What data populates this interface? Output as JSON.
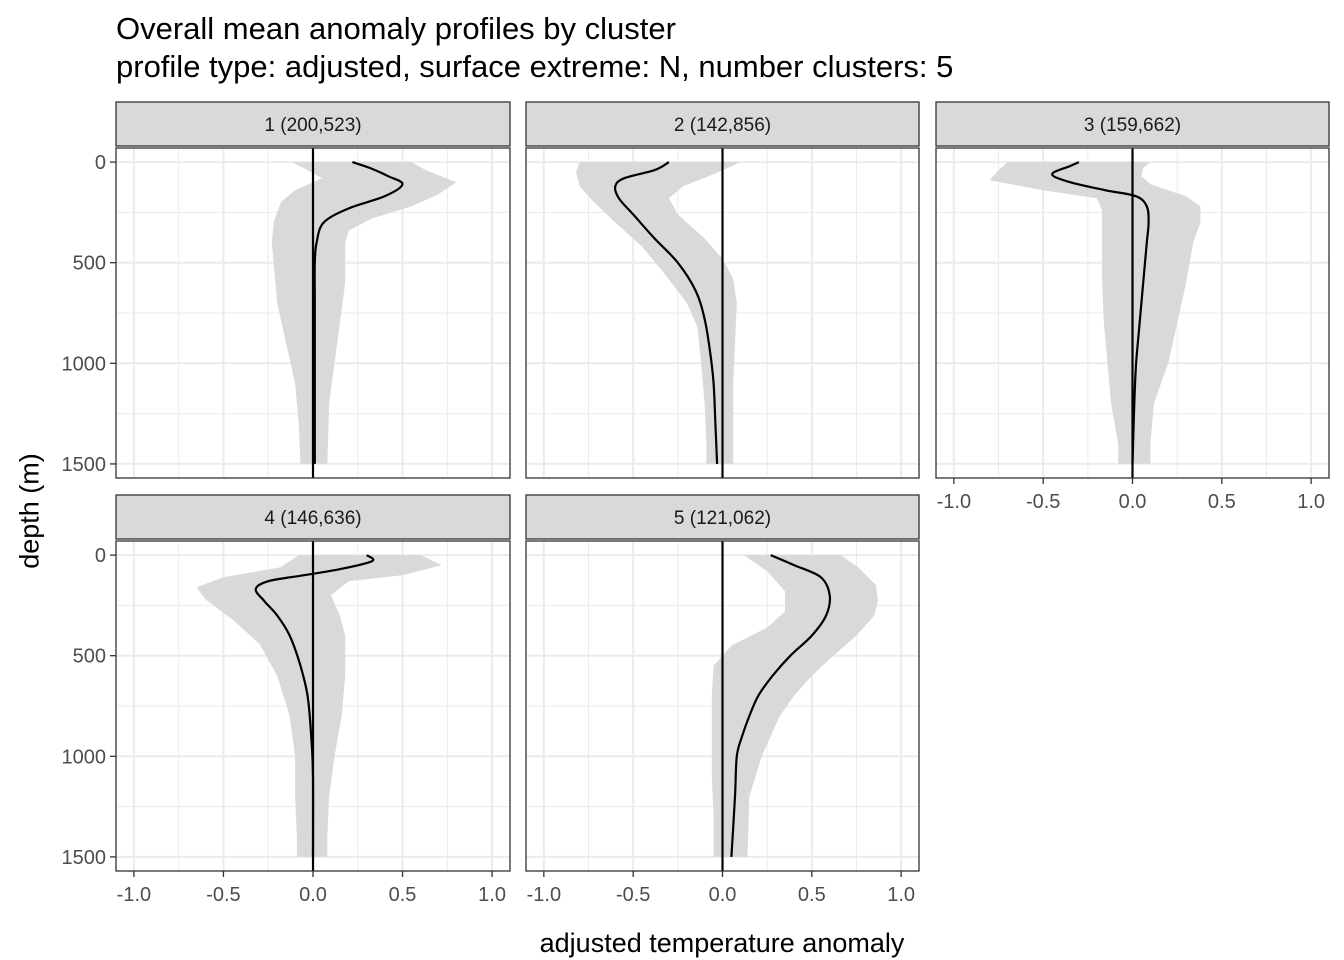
{
  "title": "Overall mean anomaly profiles by cluster",
  "subtitle": "profile type: adjusted, surface extreme: N, number clusters: 5",
  "chart_data": {
    "type": "line",
    "xlabel": "adjusted temperature anomaly",
    "ylabel": "depth (m)",
    "xlim": [
      -1.1,
      1.1
    ],
    "ylim": [
      1570,
      -70
    ],
    "y_reversed": true,
    "grid": true,
    "xticks": [
      -1.0,
      -0.5,
      0.0,
      0.5,
      1.0
    ],
    "xtick_labels": [
      "-1.0",
      "-0.5",
      "0.0",
      "0.5",
      "1.0"
    ],
    "yticks": [
      0,
      500,
      1000,
      1500
    ],
    "ytick_labels": [
      "0",
      "500",
      "1000",
      "1500"
    ],
    "zero_line": 0,
    "colors": {
      "band": "#d9d9d9",
      "line": "#000000",
      "strip": "#d9d9d9",
      "grid": "#ebebeb",
      "panel_border": "#333333"
    },
    "panels": [
      {
        "label": "1 (200,523)",
        "mean": [
          [
            0.22,
            0
          ],
          [
            0.32,
            30
          ],
          [
            0.42,
            70
          ],
          [
            0.5,
            110
          ],
          [
            0.4,
            170
          ],
          [
            0.2,
            230
          ],
          [
            0.06,
            300
          ],
          [
            0.02,
            400
          ],
          [
            0.01,
            500
          ],
          [
            0.01,
            700
          ],
          [
            0.01,
            1000
          ],
          [
            0.01,
            1200
          ],
          [
            0.01,
            1500
          ]
        ],
        "lower": [
          [
            -0.12,
            0
          ],
          [
            -0.05,
            30
          ],
          [
            0.05,
            80
          ],
          [
            -0.1,
            140
          ],
          [
            -0.18,
            200
          ],
          [
            -0.22,
            300
          ],
          [
            -0.23,
            400
          ],
          [
            -0.22,
            500
          ],
          [
            -0.2,
            700
          ],
          [
            -0.15,
            900
          ],
          [
            -0.1,
            1100
          ],
          [
            -0.08,
            1300
          ],
          [
            -0.07,
            1500
          ]
        ],
        "upper": [
          [
            0.55,
            0
          ],
          [
            0.63,
            40
          ],
          [
            0.8,
            100
          ],
          [
            0.7,
            160
          ],
          [
            0.55,
            220
          ],
          [
            0.33,
            280
          ],
          [
            0.2,
            340
          ],
          [
            0.18,
            400
          ],
          [
            0.18,
            600
          ],
          [
            0.15,
            800
          ],
          [
            0.12,
            1000
          ],
          [
            0.09,
            1200
          ],
          [
            0.08,
            1500
          ]
        ]
      },
      {
        "label": "2 (142,856)",
        "mean": [
          [
            -0.3,
            0
          ],
          [
            -0.38,
            40
          ],
          [
            -0.55,
            80
          ],
          [
            -0.6,
            120
          ],
          [
            -0.58,
            180
          ],
          [
            -0.5,
            260
          ],
          [
            -0.38,
            380
          ],
          [
            -0.25,
            500
          ],
          [
            -0.15,
            640
          ],
          [
            -0.1,
            780
          ],
          [
            -0.07,
            940
          ],
          [
            -0.05,
            1100
          ],
          [
            -0.04,
            1300
          ],
          [
            -0.03,
            1500
          ]
        ],
        "lower": [
          [
            -0.8,
            0
          ],
          [
            -0.82,
            50
          ],
          [
            -0.8,
            120
          ],
          [
            -0.72,
            200
          ],
          [
            -0.6,
            300
          ],
          [
            -0.45,
            420
          ],
          [
            -0.32,
            560
          ],
          [
            -0.2,
            700
          ],
          [
            -0.14,
            820
          ],
          [
            -0.12,
            1000
          ],
          [
            -0.1,
            1200
          ],
          [
            -0.09,
            1400
          ],
          [
            -0.09,
            1500
          ]
        ],
        "upper": [
          [
            0.1,
            0
          ],
          [
            -0.05,
            60
          ],
          [
            -0.22,
            120
          ],
          [
            -0.3,
            180
          ],
          [
            -0.25,
            260
          ],
          [
            -0.1,
            380
          ],
          [
            0,
            480
          ],
          [
            0.06,
            580
          ],
          [
            0.08,
            700
          ],
          [
            0.07,
            900
          ],
          [
            0.06,
            1100
          ],
          [
            0.06,
            1300
          ],
          [
            0.06,
            1500
          ]
        ]
      },
      {
        "label": "3 (159,662)",
        "mean": [
          [
            -0.3,
            0
          ],
          [
            -0.35,
            20
          ],
          [
            -0.45,
            60
          ],
          [
            -0.35,
            100
          ],
          [
            -0.15,
            140
          ],
          [
            0.02,
            170
          ],
          [
            0.08,
            220
          ],
          [
            0.09,
            300
          ],
          [
            0.08,
            400
          ],
          [
            0.06,
            600
          ],
          [
            0.04,
            800
          ],
          [
            0.02,
            1000
          ],
          [
            0.01,
            1200
          ],
          [
            0.0,
            1500
          ]
        ],
        "lower": [
          [
            -0.7,
            0
          ],
          [
            -0.75,
            40
          ],
          [
            -0.8,
            90
          ],
          [
            -0.5,
            140
          ],
          [
            -0.2,
            180
          ],
          [
            -0.17,
            240
          ],
          [
            -0.17,
            400
          ],
          [
            -0.17,
            600
          ],
          [
            -0.16,
            800
          ],
          [
            -0.14,
            1000
          ],
          [
            -0.12,
            1200
          ],
          [
            -0.08,
            1400
          ],
          [
            -0.08,
            1500
          ]
        ],
        "upper": [
          [
            0.1,
            0
          ],
          [
            0.06,
            30
          ],
          [
            0.05,
            70
          ],
          [
            0.1,
            110
          ],
          [
            0.3,
            170
          ],
          [
            0.38,
            220
          ],
          [
            0.38,
            300
          ],
          [
            0.34,
            400
          ],
          [
            0.3,
            600
          ],
          [
            0.25,
            800
          ],
          [
            0.2,
            1000
          ],
          [
            0.12,
            1200
          ],
          [
            0.1,
            1400
          ],
          [
            0.1,
            1500
          ]
        ]
      },
      {
        "label": "4 (146,636)",
        "mean": [
          [
            0.3,
            0
          ],
          [
            0.33,
            30
          ],
          [
            0.15,
            70
          ],
          [
            -0.05,
            100
          ],
          [
            -0.25,
            130
          ],
          [
            -0.32,
            170
          ],
          [
            -0.27,
            230
          ],
          [
            -0.2,
            300
          ],
          [
            -0.13,
            400
          ],
          [
            -0.07,
            550
          ],
          [
            -0.03,
            700
          ],
          [
            -0.01,
            900
          ],
          [
            0.0,
            1100
          ],
          [
            0.0,
            1500
          ]
        ],
        "lower": [
          [
            -0.08,
            0
          ],
          [
            -0.18,
            60
          ],
          [
            -0.5,
            110
          ],
          [
            -0.65,
            160
          ],
          [
            -0.6,
            220
          ],
          [
            -0.45,
            320
          ],
          [
            -0.3,
            440
          ],
          [
            -0.2,
            600
          ],
          [
            -0.13,
            800
          ],
          [
            -0.1,
            1000
          ],
          [
            -0.1,
            1200
          ],
          [
            -0.09,
            1400
          ],
          [
            -0.09,
            1500
          ]
        ],
        "upper": [
          [
            0.6,
            0
          ],
          [
            0.72,
            50
          ],
          [
            0.5,
            100
          ],
          [
            0.2,
            130
          ],
          [
            0.1,
            200
          ],
          [
            0.15,
            300
          ],
          [
            0.18,
            400
          ],
          [
            0.18,
            600
          ],
          [
            0.16,
            800
          ],
          [
            0.12,
            1000
          ],
          [
            0.09,
            1200
          ],
          [
            0.08,
            1400
          ],
          [
            0.08,
            1500
          ]
        ]
      },
      {
        "label": "5 (121,062)",
        "mean": [
          [
            0.27,
            0
          ],
          [
            0.4,
            50
          ],
          [
            0.55,
            110
          ],
          [
            0.6,
            200
          ],
          [
            0.58,
            300
          ],
          [
            0.5,
            400
          ],
          [
            0.38,
            500
          ],
          [
            0.28,
            600
          ],
          [
            0.2,
            700
          ],
          [
            0.15,
            800
          ],
          [
            0.11,
            900
          ],
          [
            0.08,
            1000
          ],
          [
            0.07,
            1200
          ],
          [
            0.05,
            1500
          ]
        ],
        "lower": [
          [
            0.12,
            0
          ],
          [
            0.25,
            80
          ],
          [
            0.35,
            180
          ],
          [
            0.35,
            280
          ],
          [
            0.25,
            360
          ],
          [
            0.05,
            450
          ],
          [
            -0.05,
            550
          ],
          [
            -0.06,
            700
          ],
          [
            -0.06,
            900
          ],
          [
            -0.06,
            1100
          ],
          [
            -0.05,
            1300
          ],
          [
            -0.05,
            1500
          ]
        ],
        "upper": [
          [
            0.66,
            0
          ],
          [
            0.76,
            60
          ],
          [
            0.86,
            150
          ],
          [
            0.87,
            230
          ],
          [
            0.85,
            300
          ],
          [
            0.75,
            400
          ],
          [
            0.62,
            500
          ],
          [
            0.5,
            600
          ],
          [
            0.4,
            700
          ],
          [
            0.32,
            800
          ],
          [
            0.27,
            900
          ],
          [
            0.22,
            1000
          ],
          [
            0.15,
            1200
          ],
          [
            0.14,
            1500
          ]
        ]
      }
    ]
  }
}
